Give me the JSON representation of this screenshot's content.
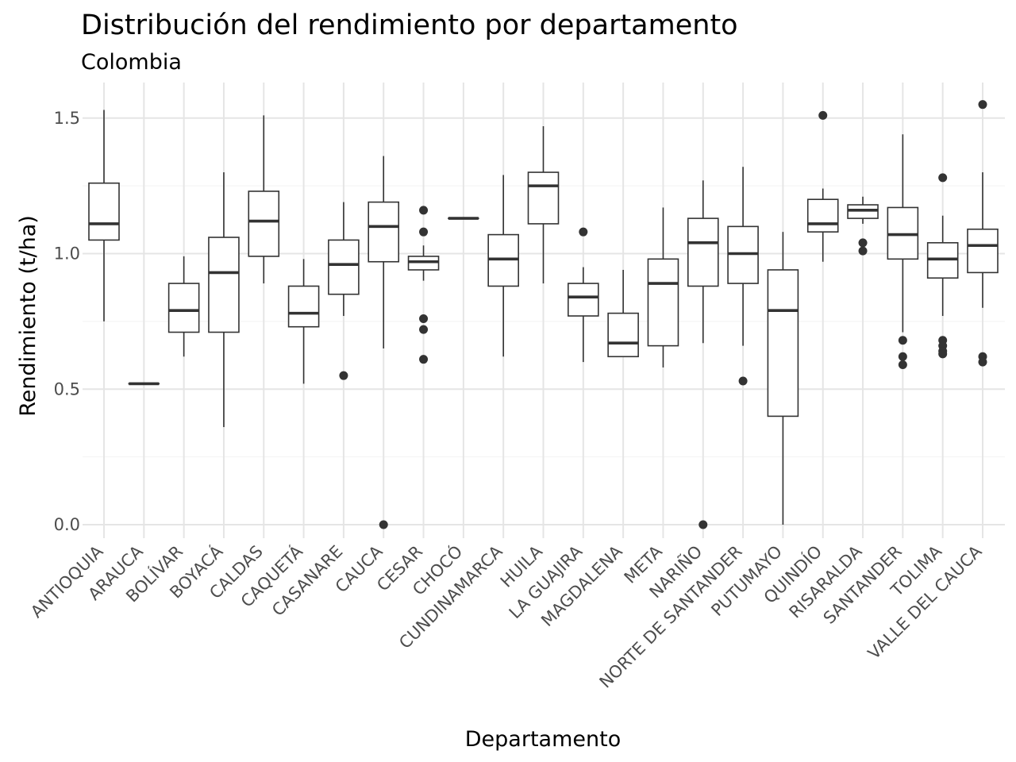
{
  "chart_data": {
    "type": "boxplot",
    "title": "Distribución del rendimiento por departamento",
    "subtitle": "Colombia",
    "xlabel": "Departamento",
    "ylabel": "Rendimiento (t/ha)",
    "ylim": [
      -0.05,
      1.63
    ],
    "yticks": [
      0.0,
      0.5,
      1.0,
      1.5
    ],
    "ytick_labels": [
      "0.0",
      "0.5",
      "1.0",
      "1.5"
    ],
    "grid": true,
    "colors": {
      "box_stroke": "#333333",
      "box_fill": "#ffffff",
      "grid": "#e5e5e5",
      "outlier": "#333333"
    },
    "categories": [
      "ANTIOQUIA",
      "ARAUCA",
      "BOLÍVAR",
      "BOYACÁ",
      "CALDAS",
      "CAQUETÁ",
      "CASANARE",
      "CAUCA",
      "CESAR",
      "CHOCÓ",
      "CUNDINAMARCA",
      "HUILA",
      "LA GUAJIRA",
      "MAGDALENA",
      "META",
      "NARIÑO",
      "NORTE DE SANTANDER",
      "PUTUMAYO",
      "QUINDÍO",
      "RISARALDA",
      "SANTANDER",
      "TOLIMA",
      "VALLE DEL CAUCA"
    ],
    "boxes": [
      {
        "min": 0.75,
        "q1": 1.05,
        "median": 1.11,
        "q3": 1.26,
        "max": 1.53,
        "outliers": []
      },
      {
        "min": 0.52,
        "q1": 0.52,
        "median": 0.52,
        "q3": 0.52,
        "max": 0.52,
        "outliers": []
      },
      {
        "min": 0.62,
        "q1": 0.71,
        "median": 0.79,
        "q3": 0.89,
        "max": 0.99,
        "outliers": []
      },
      {
        "min": 0.36,
        "q1": 0.71,
        "median": 0.93,
        "q3": 1.06,
        "max": 1.3,
        "outliers": []
      },
      {
        "min": 0.89,
        "q1": 0.99,
        "median": 1.12,
        "q3": 1.23,
        "max": 1.51,
        "outliers": []
      },
      {
        "min": 0.52,
        "q1": 0.73,
        "median": 0.78,
        "q3": 0.88,
        "max": 0.98,
        "outliers": []
      },
      {
        "min": 0.77,
        "q1": 0.85,
        "median": 0.96,
        "q3": 1.05,
        "max": 1.19,
        "outliers": [
          0.55
        ]
      },
      {
        "min": 0.65,
        "q1": 0.97,
        "median": 1.1,
        "q3": 1.19,
        "max": 1.36,
        "outliers": [
          0.0
        ]
      },
      {
        "min": 0.9,
        "q1": 0.94,
        "median": 0.97,
        "q3": 0.99,
        "max": 1.03,
        "outliers": [
          1.16,
          1.08,
          0.76,
          0.72,
          0.61
        ]
      },
      {
        "min": 1.13,
        "q1": 1.13,
        "median": 1.13,
        "q3": 1.13,
        "max": 1.13,
        "outliers": []
      },
      {
        "min": 0.62,
        "q1": 0.88,
        "median": 0.98,
        "q3": 1.07,
        "max": 1.29,
        "outliers": []
      },
      {
        "min": 0.89,
        "q1": 1.11,
        "median": 1.25,
        "q3": 1.3,
        "max": 1.47,
        "outliers": []
      },
      {
        "min": 0.6,
        "q1": 0.77,
        "median": 0.84,
        "q3": 0.89,
        "max": 0.95,
        "outliers": [
          1.08
        ]
      },
      {
        "min": 0.62,
        "q1": 0.62,
        "median": 0.67,
        "q3": 0.78,
        "max": 0.94,
        "outliers": []
      },
      {
        "min": 0.58,
        "q1": 0.66,
        "median": 0.89,
        "q3": 0.98,
        "max": 1.17,
        "outliers": []
      },
      {
        "min": 0.67,
        "q1": 0.88,
        "median": 1.04,
        "q3": 1.13,
        "max": 1.27,
        "outliers": [
          0.0
        ]
      },
      {
        "min": 0.66,
        "q1": 0.89,
        "median": 1.0,
        "q3": 1.1,
        "max": 1.32,
        "outliers": [
          0.53
        ]
      },
      {
        "min": 0.0,
        "q1": 0.4,
        "median": 0.79,
        "q3": 0.94,
        "max": 1.08,
        "outliers": []
      },
      {
        "min": 0.97,
        "q1": 1.08,
        "median": 1.11,
        "q3": 1.2,
        "max": 1.24,
        "outliers": [
          1.51
        ]
      },
      {
        "min": 1.11,
        "q1": 1.13,
        "median": 1.16,
        "q3": 1.18,
        "max": 1.21,
        "outliers": [
          1.04,
          1.01
        ]
      },
      {
        "min": 0.71,
        "q1": 0.98,
        "median": 1.07,
        "q3": 1.17,
        "max": 1.44,
        "outliers": [
          0.68,
          0.62,
          0.59
        ]
      },
      {
        "min": 0.77,
        "q1": 0.91,
        "median": 0.98,
        "q3": 1.04,
        "max": 1.14,
        "outliers": [
          1.28,
          0.68,
          0.66,
          0.64,
          0.63
        ]
      },
      {
        "min": 0.8,
        "q1": 0.93,
        "median": 1.03,
        "q3": 1.09,
        "max": 1.3,
        "outliers": [
          1.55,
          0.62,
          0.6
        ]
      }
    ]
  }
}
